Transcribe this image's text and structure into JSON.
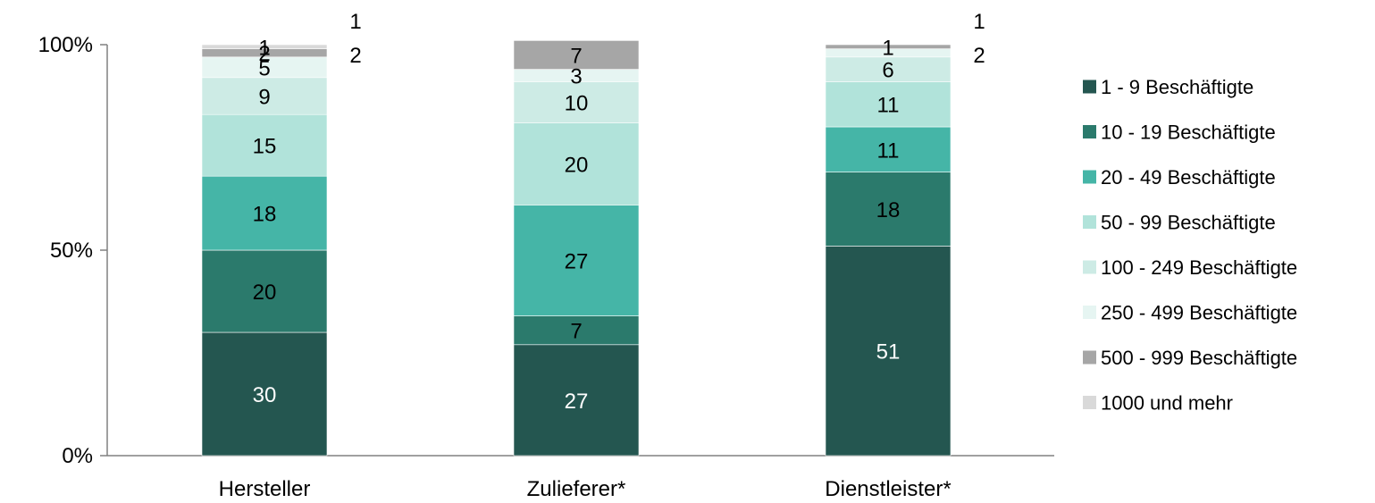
{
  "chart_data": {
    "type": "bar",
    "stacked": true,
    "categories": [
      "Hersteller",
      "Zulieferer*",
      "Dienstleister*"
    ],
    "ylim": [
      0,
      100
    ],
    "yticks": [
      "0%",
      "50%",
      "100%"
    ],
    "ytick_values": [
      0,
      50,
      100
    ],
    "grid": false,
    "legend_position": "right",
    "series": [
      {
        "name": "1 - 9 Beschäftigte",
        "color": "#245650",
        "label_color": "#ffffff",
        "values": [
          30,
          27,
          51
        ],
        "labels": [
          "30",
          "27",
          "51"
        ]
      },
      {
        "name": "10 - 19 Beschäftigte",
        "color": "#2b7a6c",
        "label_color": "#000000",
        "values": [
          20,
          7,
          18
        ],
        "labels": [
          "20",
          "7",
          "18"
        ]
      },
      {
        "name": "20 - 49 Beschäftigte",
        "color": "#45b5a7",
        "label_color": "#000000",
        "values": [
          18,
          27,
          11
        ],
        "labels": [
          "18",
          "27",
          "11"
        ]
      },
      {
        "name": "50 - 99 Beschäftigte",
        "color": "#b1e3da",
        "label_color": "#000000",
        "values": [
          15,
          20,
          11
        ],
        "labels": [
          "15",
          "20",
          "11"
        ]
      },
      {
        "name": "100 - 249 Beschäftigte",
        "color": "#cdebe5",
        "label_color": "#000000",
        "values": [
          9,
          10,
          6
        ],
        "labels": [
          "9",
          "10",
          "6"
        ]
      },
      {
        "name": "250 - 499 Beschäftigte",
        "color": "#e6f5f2",
        "label_color": "#000000",
        "values": [
          5,
          3,
          2
        ],
        "labels": [
          "5",
          "3",
          ""
        ]
      },
      {
        "name": "500 - 999 Beschäftigte",
        "color": "#a6a6a6",
        "label_color": "#000000",
        "values": [
          2,
          7,
          1
        ],
        "labels": [
          "2",
          "7",
          "1"
        ]
      },
      {
        "name": "1000 und mehr",
        "color": "#d9d9d9",
        "label_color": "#000000",
        "values": [
          1,
          0,
          0
        ],
        "labels": [
          "1",
          "",
          ""
        ]
      }
    ],
    "outside_labels": [
      {
        "category": 0,
        "text": "1"
      },
      {
        "category": 0,
        "text": "2"
      },
      {
        "category": 2,
        "text": "1"
      },
      {
        "category": 2,
        "text": "2"
      }
    ]
  }
}
